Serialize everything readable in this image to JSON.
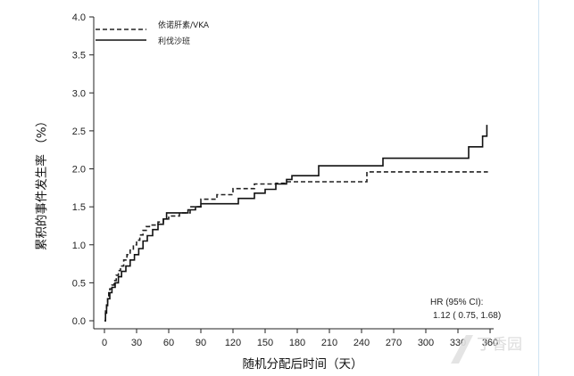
{
  "chart_data": {
    "type": "line",
    "xlabel": "随机分配后时间（天）",
    "ylabel": "累积的事件发生率 （%）",
    "xlim": [
      0,
      360
    ],
    "ylim": [
      0,
      4.0
    ],
    "xticks": [
      0,
      30,
      60,
      90,
      120,
      150,
      180,
      210,
      240,
      270,
      300,
      330,
      360
    ],
    "yticks": [
      "0.0",
      "0.5",
      "1.0",
      "1.5",
      "2.0",
      "2.5",
      "3.0",
      "3.5",
      "4.0"
    ],
    "grid": false,
    "legend_position": "top-left",
    "series": [
      {
        "name": "依诺肝素/VKA",
        "style": "dashed",
        "color": "#222222",
        "points": [
          [
            0,
            0.0
          ],
          [
            1,
            0.15
          ],
          [
            2,
            0.22
          ],
          [
            3,
            0.3
          ],
          [
            4,
            0.37
          ],
          [
            5,
            0.42
          ],
          [
            7,
            0.47
          ],
          [
            9,
            0.53
          ],
          [
            11,
            0.6
          ],
          [
            13,
            0.66
          ],
          [
            15,
            0.72
          ],
          [
            18,
            0.8
          ],
          [
            21,
            0.87
          ],
          [
            24,
            0.93
          ],
          [
            27,
            1.0
          ],
          [
            30,
            1.06
          ],
          [
            33,
            1.13
          ],
          [
            36,
            1.19
          ],
          [
            39,
            1.24
          ],
          [
            42,
            1.26
          ],
          [
            50,
            1.3
          ],
          [
            55,
            1.34
          ],
          [
            60,
            1.38
          ],
          [
            70,
            1.42
          ],
          [
            80,
            1.5
          ],
          [
            90,
            1.6
          ],
          [
            105,
            1.66
          ],
          [
            120,
            1.74
          ],
          [
            140,
            1.8
          ],
          [
            160,
            1.81
          ],
          [
            170,
            1.83
          ],
          [
            245,
            1.83
          ],
          [
            245,
            1.96
          ],
          [
            358,
            1.96
          ]
        ]
      },
      {
        "name": "利伐沙班",
        "style": "solid",
        "color": "#111111",
        "points": [
          [
            0,
            0.0
          ],
          [
            1,
            0.1
          ],
          [
            2,
            0.2
          ],
          [
            3,
            0.29
          ],
          [
            5,
            0.37
          ],
          [
            7,
            0.44
          ],
          [
            10,
            0.5
          ],
          [
            13,
            0.58
          ],
          [
            16,
            0.65
          ],
          [
            20,
            0.72
          ],
          [
            24,
            0.8
          ],
          [
            28,
            0.87
          ],
          [
            32,
            0.95
          ],
          [
            36,
            1.05
          ],
          [
            40,
            1.12
          ],
          [
            45,
            1.2
          ],
          [
            50,
            1.27
          ],
          [
            55,
            1.34
          ],
          [
            58,
            1.42
          ],
          [
            75,
            1.42
          ],
          [
            78,
            1.46
          ],
          [
            85,
            1.5
          ],
          [
            90,
            1.54
          ],
          [
            120,
            1.54
          ],
          [
            125,
            1.61
          ],
          [
            140,
            1.68
          ],
          [
            150,
            1.73
          ],
          [
            160,
            1.8
          ],
          [
            170,
            1.86
          ],
          [
            175,
            1.91
          ],
          [
            200,
            1.91
          ],
          [
            200,
            2.04
          ],
          [
            260,
            2.04
          ],
          [
            260,
            2.14
          ],
          [
            340,
            2.14
          ],
          [
            340,
            2.29
          ],
          [
            353,
            2.29
          ],
          [
            353,
            2.43
          ],
          [
            357,
            2.43
          ],
          [
            357,
            2.58
          ]
        ]
      }
    ],
    "annotation": {
      "line1": "HR (95% CI):",
      "line2": "1.12 ( 0.75,  1.68)"
    },
    "watermark": "丁香园"
  }
}
